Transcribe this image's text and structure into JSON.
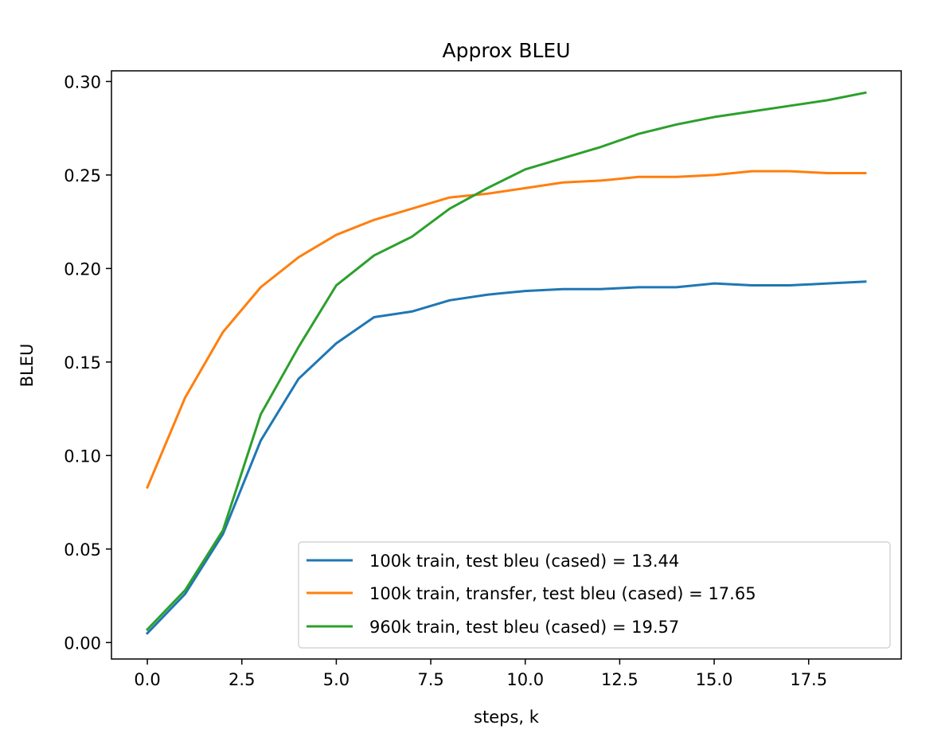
{
  "chart_data": {
    "type": "line",
    "title": "Approx BLEU",
    "xlabel": "steps, k",
    "ylabel": "BLEU",
    "xlim": [
      -0.95,
      19.95
    ],
    "ylim": [
      -0.0088,
      0.3057
    ],
    "xticks": [
      "0.0",
      "2.5",
      "5.0",
      "7.5",
      "10.0",
      "12.5",
      "15.0",
      "17.5"
    ],
    "xtick_values": [
      0,
      2.5,
      5,
      7.5,
      10,
      12.5,
      15,
      17.5
    ],
    "yticks": [
      "0.00",
      "0.05",
      "0.10",
      "0.15",
      "0.20",
      "0.25",
      "0.30"
    ],
    "ytick_values": [
      0,
      0.05,
      0.1,
      0.15,
      0.2,
      0.25,
      0.3
    ],
    "grid": false,
    "legend_position": "lower-right",
    "x": [
      0,
      1,
      2,
      3,
      4,
      5,
      6,
      7,
      8,
      9,
      10,
      11,
      12,
      13,
      14,
      15,
      16,
      17,
      18,
      19
    ],
    "series": [
      {
        "name": "100k train, test bleu (cased) = 13.44",
        "color": "#1f77b4",
        "values": [
          0.005,
          0.026,
          0.058,
          0.108,
          0.141,
          0.16,
          0.174,
          0.177,
          0.183,
          0.186,
          0.188,
          0.189,
          0.189,
          0.19,
          0.19,
          0.192,
          0.191,
          0.191,
          0.192,
          0.193
        ]
      },
      {
        "name": "100k train, transfer, test bleu (cased) = 17.65",
        "color": "#ff7f0e",
        "values": [
          0.083,
          0.131,
          0.166,
          0.19,
          0.206,
          0.218,
          0.226,
          0.232,
          0.238,
          0.24,
          0.243,
          0.246,
          0.247,
          0.249,
          0.249,
          0.25,
          0.252,
          0.252,
          0.251,
          0.251
        ]
      },
      {
        "name": "960k train, test bleu (cased) = 19.57",
        "color": "#2ca02c",
        "values": [
          0.007,
          0.028,
          0.06,
          0.122,
          0.158,
          0.191,
          0.207,
          0.217,
          0.232,
          0.243,
          0.253,
          0.259,
          0.265,
          0.272,
          0.277,
          0.281,
          0.284,
          0.287,
          0.29,
          0.294
        ]
      }
    ]
  }
}
